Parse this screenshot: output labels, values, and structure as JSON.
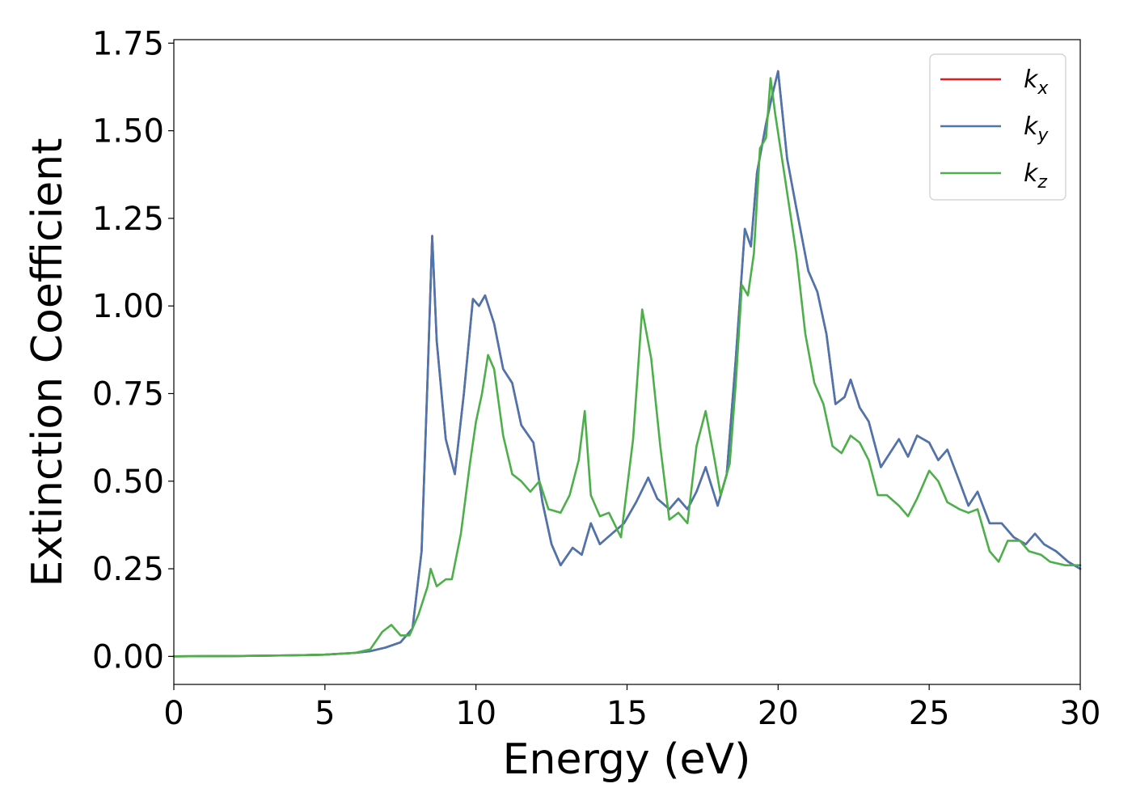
{
  "chart_data": {
    "type": "line",
    "title": "",
    "xlabel": "Energy (eV)",
    "ylabel": "Extinction Coefficient",
    "xlim": [
      0,
      30
    ],
    "ylim": [
      -0.08,
      1.76
    ],
    "xticks": [
      "0",
      "5",
      "10",
      "15",
      "20",
      "25",
      "30"
    ],
    "yticks": [
      "0.00",
      "0.25",
      "0.50",
      "0.75",
      "1.00",
      "1.25",
      "1.50",
      "1.75"
    ],
    "grid": false,
    "legend_position": "top-right",
    "series": [
      {
        "name": "k_x",
        "name_base": "k",
        "name_sub": "x",
        "color": "#e41a1c",
        "points": [
          [
            0,
            0
          ],
          [
            2,
            0.001
          ],
          [
            4,
            0.003
          ],
          [
            5,
            0.005
          ],
          [
            6,
            0.01
          ],
          [
            6.5,
            0.015
          ],
          [
            7,
            0.025
          ],
          [
            7.5,
            0.04
          ],
          [
            7.9,
            0.08
          ],
          [
            8.2,
            0.3
          ],
          [
            8.4,
            0.8
          ],
          [
            8.55,
            1.2
          ],
          [
            8.7,
            0.9
          ],
          [
            9,
            0.62
          ],
          [
            9.3,
            0.52
          ],
          [
            9.6,
            0.75
          ],
          [
            9.9,
            1.02
          ],
          [
            10.1,
            1.0
          ],
          [
            10.3,
            1.03
          ],
          [
            10.6,
            0.95
          ],
          [
            10.9,
            0.82
          ],
          [
            11.2,
            0.78
          ],
          [
            11.5,
            0.66
          ],
          [
            11.9,
            0.61
          ],
          [
            12.2,
            0.44
          ],
          [
            12.5,
            0.32
          ],
          [
            12.8,
            0.26
          ],
          [
            13.2,
            0.31
          ],
          [
            13.5,
            0.29
          ],
          [
            13.8,
            0.38
          ],
          [
            14.1,
            0.32
          ],
          [
            14.5,
            0.35
          ],
          [
            14.9,
            0.38
          ],
          [
            15.3,
            0.44
          ],
          [
            15.7,
            0.51
          ],
          [
            16,
            0.45
          ],
          [
            16.4,
            0.42
          ],
          [
            16.7,
            0.45
          ],
          [
            17,
            0.42
          ],
          [
            17.3,
            0.47
          ],
          [
            17.6,
            0.54
          ],
          [
            18,
            0.43
          ],
          [
            18.3,
            0.52
          ],
          [
            18.6,
            0.85
          ],
          [
            18.9,
            1.22
          ],
          [
            19.1,
            1.17
          ],
          [
            19.3,
            1.38
          ],
          [
            19.6,
            1.52
          ],
          [
            19.8,
            1.6
          ],
          [
            20,
            1.67
          ],
          [
            20.3,
            1.42
          ],
          [
            20.6,
            1.28
          ],
          [
            21,
            1.1
          ],
          [
            21.3,
            1.04
          ],
          [
            21.6,
            0.92
          ],
          [
            21.9,
            0.72
          ],
          [
            22.2,
            0.74
          ],
          [
            22.4,
            0.79
          ],
          [
            22.7,
            0.71
          ],
          [
            23,
            0.67
          ],
          [
            23.4,
            0.54
          ],
          [
            23.7,
            0.58
          ],
          [
            24,
            0.62
          ],
          [
            24.3,
            0.57
          ],
          [
            24.6,
            0.63
          ],
          [
            25,
            0.61
          ],
          [
            25.3,
            0.56
          ],
          [
            25.6,
            0.59
          ],
          [
            26,
            0.5
          ],
          [
            26.3,
            0.43
          ],
          [
            26.6,
            0.47
          ],
          [
            27,
            0.38
          ],
          [
            27.4,
            0.38
          ],
          [
            27.8,
            0.34
          ],
          [
            28.2,
            0.32
          ],
          [
            28.5,
            0.35
          ],
          [
            28.8,
            0.32
          ],
          [
            29.2,
            0.3
          ],
          [
            29.6,
            0.27
          ],
          [
            30,
            0.25
          ]
        ]
      },
      {
        "name": "k_y",
        "name_base": "k",
        "name_sub": "y",
        "color": "#4a76b0",
        "points": [
          [
            0,
            0
          ],
          [
            2,
            0.001
          ],
          [
            4,
            0.003
          ],
          [
            5,
            0.005
          ],
          [
            6,
            0.01
          ],
          [
            6.5,
            0.015
          ],
          [
            7,
            0.025
          ],
          [
            7.5,
            0.04
          ],
          [
            7.9,
            0.08
          ],
          [
            8.2,
            0.3
          ],
          [
            8.4,
            0.8
          ],
          [
            8.55,
            1.2
          ],
          [
            8.7,
            0.9
          ],
          [
            9,
            0.62
          ],
          [
            9.3,
            0.52
          ],
          [
            9.6,
            0.75
          ],
          [
            9.9,
            1.02
          ],
          [
            10.1,
            1.0
          ],
          [
            10.3,
            1.03
          ],
          [
            10.6,
            0.95
          ],
          [
            10.9,
            0.82
          ],
          [
            11.2,
            0.78
          ],
          [
            11.5,
            0.66
          ],
          [
            11.9,
            0.61
          ],
          [
            12.2,
            0.44
          ],
          [
            12.5,
            0.32
          ],
          [
            12.8,
            0.26
          ],
          [
            13.2,
            0.31
          ],
          [
            13.5,
            0.29
          ],
          [
            13.8,
            0.38
          ],
          [
            14.1,
            0.32
          ],
          [
            14.5,
            0.35
          ],
          [
            14.9,
            0.38
          ],
          [
            15.3,
            0.44
          ],
          [
            15.7,
            0.51
          ],
          [
            16,
            0.45
          ],
          [
            16.4,
            0.42
          ],
          [
            16.7,
            0.45
          ],
          [
            17,
            0.42
          ],
          [
            17.3,
            0.47
          ],
          [
            17.6,
            0.54
          ],
          [
            18,
            0.43
          ],
          [
            18.3,
            0.52
          ],
          [
            18.6,
            0.85
          ],
          [
            18.9,
            1.22
          ],
          [
            19.1,
            1.17
          ],
          [
            19.3,
            1.38
          ],
          [
            19.6,
            1.52
          ],
          [
            19.8,
            1.6
          ],
          [
            20,
            1.67
          ],
          [
            20.3,
            1.42
          ],
          [
            20.6,
            1.28
          ],
          [
            21,
            1.1
          ],
          [
            21.3,
            1.04
          ],
          [
            21.6,
            0.92
          ],
          [
            21.9,
            0.72
          ],
          [
            22.2,
            0.74
          ],
          [
            22.4,
            0.79
          ],
          [
            22.7,
            0.71
          ],
          [
            23,
            0.67
          ],
          [
            23.4,
            0.54
          ],
          [
            23.7,
            0.58
          ],
          [
            24,
            0.62
          ],
          [
            24.3,
            0.57
          ],
          [
            24.6,
            0.63
          ],
          [
            25,
            0.61
          ],
          [
            25.3,
            0.56
          ],
          [
            25.6,
            0.59
          ],
          [
            26,
            0.5
          ],
          [
            26.3,
            0.43
          ],
          [
            26.6,
            0.47
          ],
          [
            27,
            0.38
          ],
          [
            27.4,
            0.38
          ],
          [
            27.8,
            0.34
          ],
          [
            28.2,
            0.32
          ],
          [
            28.5,
            0.35
          ],
          [
            28.8,
            0.32
          ],
          [
            29.2,
            0.3
          ],
          [
            29.6,
            0.27
          ],
          [
            30,
            0.25
          ]
        ]
      },
      {
        "name": "k_z",
        "name_base": "k",
        "name_sub": "z",
        "color": "#4daf4a",
        "points": [
          [
            0,
            0
          ],
          [
            2,
            0.001
          ],
          [
            4,
            0.003
          ],
          [
            5,
            0.005
          ],
          [
            6,
            0.01
          ],
          [
            6.5,
            0.02
          ],
          [
            6.9,
            0.07
          ],
          [
            7.2,
            0.09
          ],
          [
            7.5,
            0.06
          ],
          [
            7.8,
            0.06
          ],
          [
            8.1,
            0.12
          ],
          [
            8.4,
            0.2
          ],
          [
            8.5,
            0.25
          ],
          [
            8.7,
            0.2
          ],
          [
            9,
            0.22
          ],
          [
            9.2,
            0.22
          ],
          [
            9.5,
            0.35
          ],
          [
            9.8,
            0.55
          ],
          [
            10,
            0.67
          ],
          [
            10.2,
            0.75
          ],
          [
            10.4,
            0.86
          ],
          [
            10.6,
            0.82
          ],
          [
            10.9,
            0.63
          ],
          [
            11.2,
            0.52
          ],
          [
            11.5,
            0.5
          ],
          [
            11.8,
            0.47
          ],
          [
            12.1,
            0.5
          ],
          [
            12.4,
            0.42
          ],
          [
            12.8,
            0.41
          ],
          [
            13.1,
            0.46
          ],
          [
            13.4,
            0.56
          ],
          [
            13.6,
            0.7
          ],
          [
            13.8,
            0.46
          ],
          [
            14.1,
            0.4
          ],
          [
            14.4,
            0.41
          ],
          [
            14.8,
            0.34
          ],
          [
            15.2,
            0.62
          ],
          [
            15.5,
            0.99
          ],
          [
            15.8,
            0.85
          ],
          [
            16.1,
            0.6
          ],
          [
            16.4,
            0.39
          ],
          [
            16.7,
            0.41
          ],
          [
            17,
            0.38
          ],
          [
            17.3,
            0.6
          ],
          [
            17.6,
            0.7
          ],
          [
            17.9,
            0.56
          ],
          [
            18.1,
            0.46
          ],
          [
            18.4,
            0.55
          ],
          [
            18.6,
            0.78
          ],
          [
            18.8,
            1.06
          ],
          [
            19,
            1.03
          ],
          [
            19.2,
            1.15
          ],
          [
            19.4,
            1.45
          ],
          [
            19.6,
            1.48
          ],
          [
            19.75,
            1.65
          ],
          [
            19.9,
            1.55
          ],
          [
            20.2,
            1.38
          ],
          [
            20.6,
            1.15
          ],
          [
            20.9,
            0.92
          ],
          [
            21.2,
            0.78
          ],
          [
            21.5,
            0.72
          ],
          [
            21.8,
            0.6
          ],
          [
            22.1,
            0.58
          ],
          [
            22.4,
            0.63
          ],
          [
            22.7,
            0.61
          ],
          [
            23,
            0.56
          ],
          [
            23.3,
            0.46
          ],
          [
            23.6,
            0.46
          ],
          [
            24,
            0.43
          ],
          [
            24.3,
            0.4
          ],
          [
            24.6,
            0.45
          ],
          [
            25,
            0.53
          ],
          [
            25.3,
            0.5
          ],
          [
            25.6,
            0.44
          ],
          [
            26,
            0.42
          ],
          [
            26.3,
            0.41
          ],
          [
            26.6,
            0.42
          ],
          [
            27,
            0.3
          ],
          [
            27.3,
            0.27
          ],
          [
            27.6,
            0.33
          ],
          [
            28,
            0.33
          ],
          [
            28.3,
            0.3
          ],
          [
            28.7,
            0.29
          ],
          [
            29,
            0.27
          ],
          [
            29.5,
            0.26
          ],
          [
            30,
            0.26
          ]
        ]
      }
    ]
  }
}
